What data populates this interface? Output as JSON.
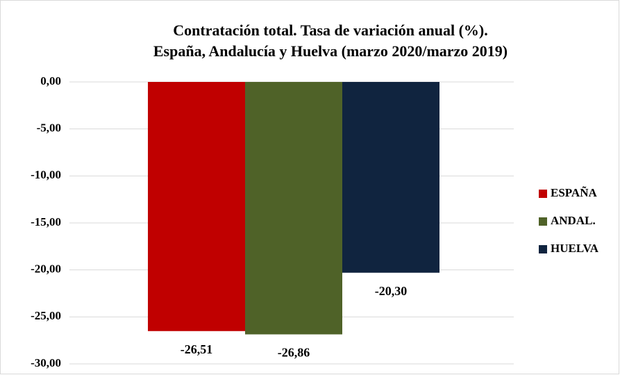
{
  "chart_data": {
    "type": "bar",
    "title": [
      "Contratación total. Tasa de variación anual (%).",
      "España, Andalucía y Huelva (marzo 2020/marzo 2019)"
    ],
    "series": [
      {
        "name": "ESPAÑA",
        "color": "#c00000",
        "values": [
          -26.51
        ],
        "value_labels": [
          "-26,51"
        ]
      },
      {
        "name": "ANDAL.",
        "color": "#4f6228",
        "values": [
          -26.86
        ],
        "value_labels": [
          "-26,86"
        ]
      },
      {
        "name": "HUELVA",
        "color": "#10243f",
        "values": [
          -20.3
        ],
        "value_labels": [
          "-20,30"
        ]
      }
    ],
    "ylim": [
      -30,
      0
    ],
    "yticks": [
      {
        "value": 0,
        "label": "0,00"
      },
      {
        "value": -5,
        "label": "-5,00"
      },
      {
        "value": -10,
        "label": "-10,00"
      },
      {
        "value": -15,
        "label": "-15,00"
      },
      {
        "value": -20,
        "label": "-20,00"
      },
      {
        "value": -25,
        "label": "-25,00"
      },
      {
        "value": -30,
        "label": "-30,00"
      }
    ],
    "grid": true,
    "legend": "right"
  }
}
